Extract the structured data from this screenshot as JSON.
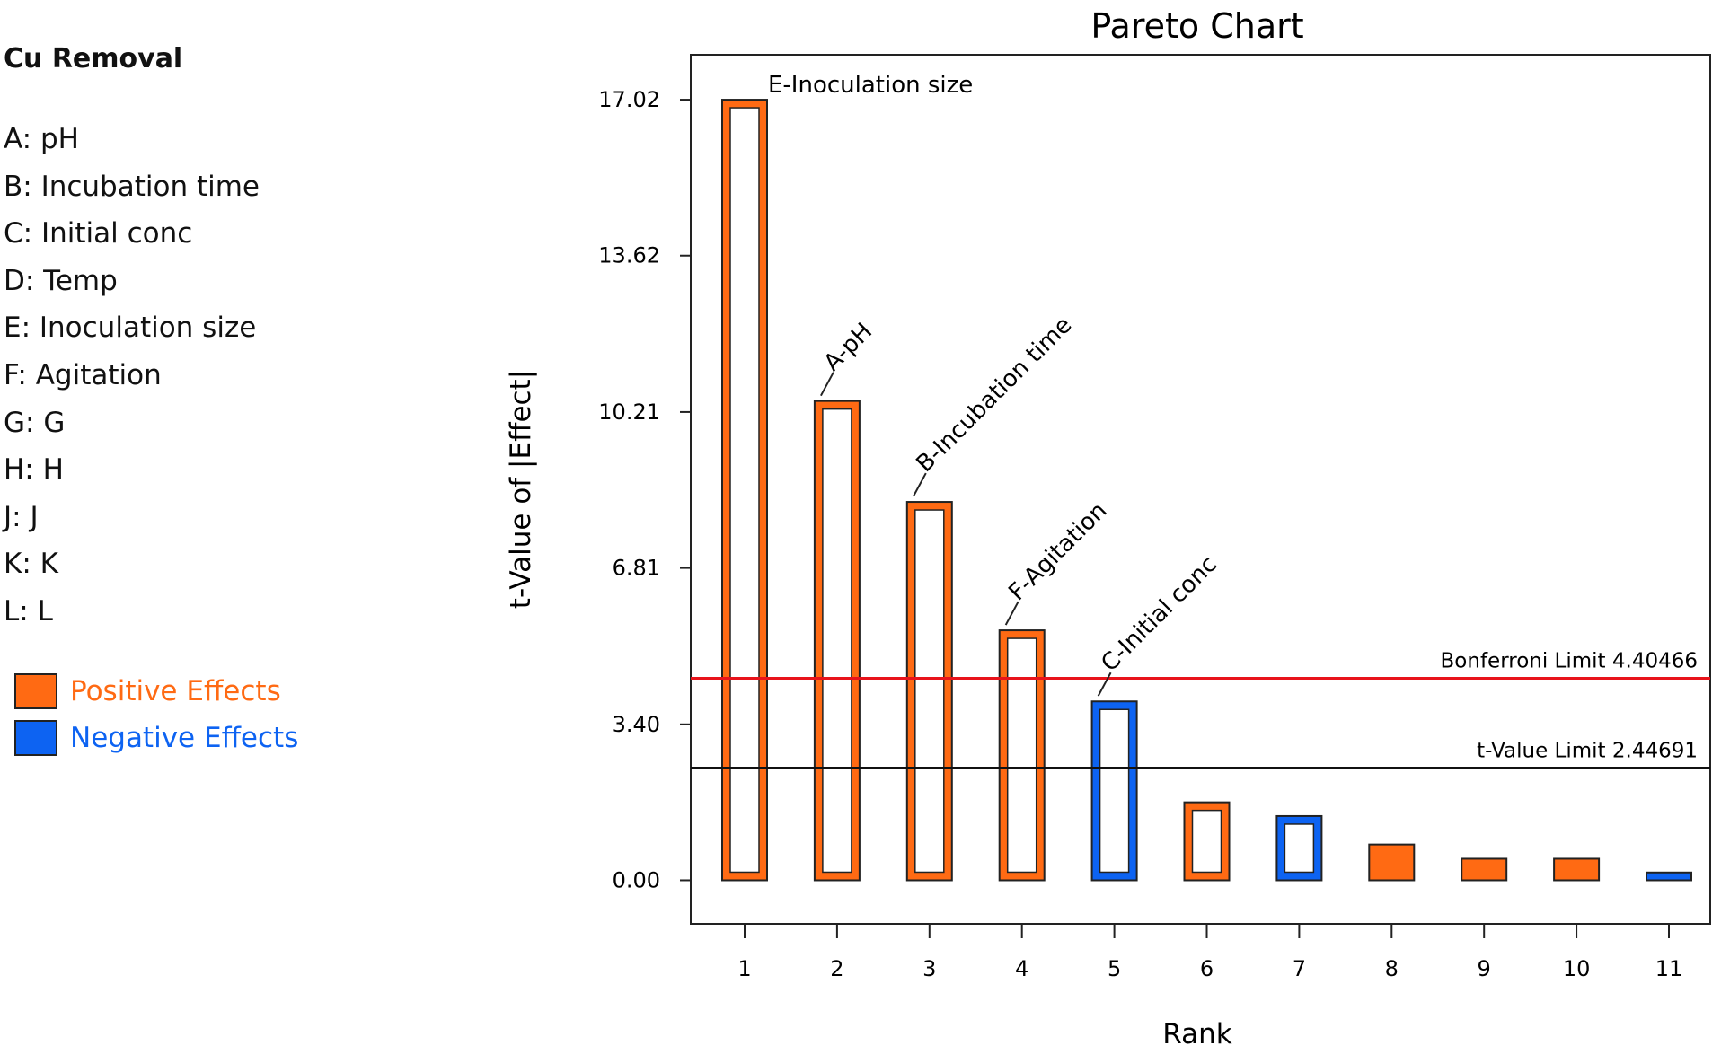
{
  "response": {
    "title": "Cu Removal"
  },
  "factors": [
    "A: pH",
    "B: Incubation time",
    "C: Initial conc",
    "D: Temp",
    "E: Inoculation size",
    "F: Agitation",
    "G: G",
    "H: H",
    "J: J",
    "K: K",
    "L: L"
  ],
  "legend": {
    "positive": {
      "label": "Positive Effects",
      "color": "#ff6a13"
    },
    "negative": {
      "label": "Negative Effects",
      "color": "#0d63f2"
    }
  },
  "chart_data": {
    "type": "bar",
    "title": "Pareto Chart",
    "xlabel": "Rank",
    "ylabel": "t-Value of |Effect|",
    "categories": [
      "1",
      "2",
      "3",
      "4",
      "5",
      "6",
      "7",
      "8",
      "9",
      "10",
      "11"
    ],
    "values": [
      17.02,
      10.45,
      8.25,
      5.45,
      3.9,
      1.7,
      1.4,
      0.78,
      0.47,
      0.47,
      0.17
    ],
    "effect_sign": [
      "positive",
      "positive",
      "positive",
      "positive",
      "negative",
      "positive",
      "negative",
      "positive",
      "positive",
      "positive",
      "negative"
    ],
    "bar_labels": [
      "E-Inoculation size",
      "A-pH",
      "B-Incubation time",
      "F-Agitation",
      "C-Initial conc",
      "",
      "",
      "",
      "",
      "",
      ""
    ],
    "yticks": [
      "0.00",
      "3.40",
      "6.81",
      "10.21",
      "13.62",
      "17.02"
    ],
    "ylim": [
      -0.95,
      18.0
    ],
    "reference_lines": [
      {
        "label": "Bonferroni Limit 4.40466",
        "value": 4.40466,
        "color": "#e8131b"
      },
      {
        "label": "t-Value Limit 2.44691",
        "value": 2.44691,
        "color": "#111111"
      }
    ],
    "grid": false,
    "legend_position": "left"
  }
}
